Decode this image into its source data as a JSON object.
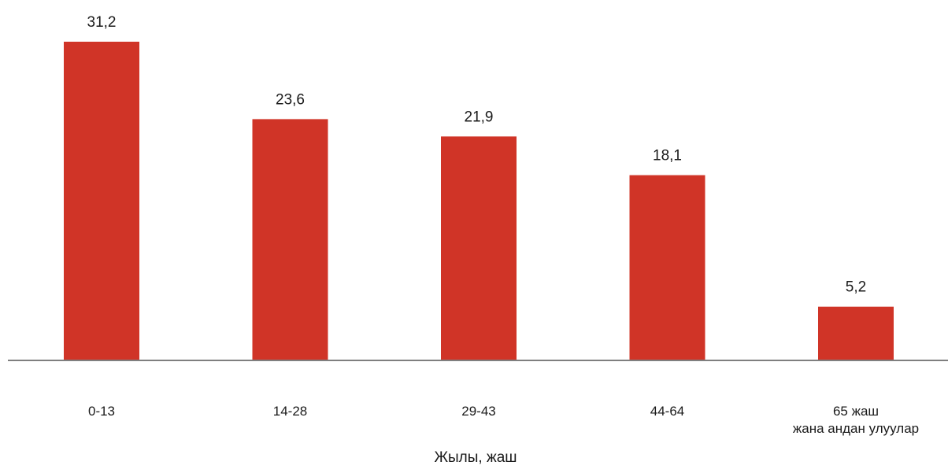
{
  "chart_data": {
    "type": "bar",
    "categories": [
      [
        "0-13"
      ],
      [
        "14-28"
      ],
      [
        "29-43"
      ],
      [
        "44-64"
      ],
      [
        "65 жаш",
        "жана андан улуулар"
      ]
    ],
    "values": [
      31.2,
      23.6,
      21.9,
      18.1,
      5.2
    ],
    "value_labels": [
      "31,2",
      "23,6",
      "21,9",
      "18,1",
      "5,2"
    ],
    "title": "",
    "xlabel": "Жылы, жаш",
    "ylabel": "",
    "ylim": [
      0,
      31.2
    ],
    "grid": false,
    "legend": "none",
    "colors": {
      "bar": "#D03427",
      "axis": "#7f7f7f"
    }
  }
}
